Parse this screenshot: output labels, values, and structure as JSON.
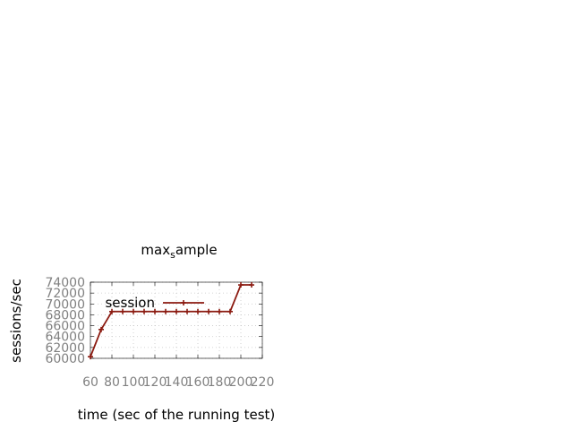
{
  "chart_data": {
    "type": "line",
    "title_main": "max",
    "title_sub": "s",
    "title_rest": "ample",
    "xlabel": "time (sec of the running test)",
    "ylabel": "sessions/sec",
    "xlim": [
      60,
      220
    ],
    "ylim": [
      60000,
      74000
    ],
    "xticks": [
      "60",
      "80",
      "100",
      "120",
      "140",
      "160",
      "180",
      "200",
      "220"
    ],
    "yticks": [
      "60000",
      "62000",
      "64000",
      "66000",
      "68000",
      "70000",
      "72000",
      "74000"
    ],
    "grid": true,
    "legend_position": "top-left",
    "series": [
      {
        "name": "session",
        "color": "#8b1a10",
        "x": [
          60,
          70,
          80,
          90,
          100,
          110,
          120,
          130,
          140,
          150,
          160,
          170,
          180,
          190,
          200,
          210
        ],
        "y": [
          60300,
          65300,
          68600,
          68600,
          68600,
          68600,
          68600,
          68600,
          68600,
          68600,
          68600,
          68600,
          68600,
          68600,
          73500,
          73500
        ]
      }
    ]
  }
}
